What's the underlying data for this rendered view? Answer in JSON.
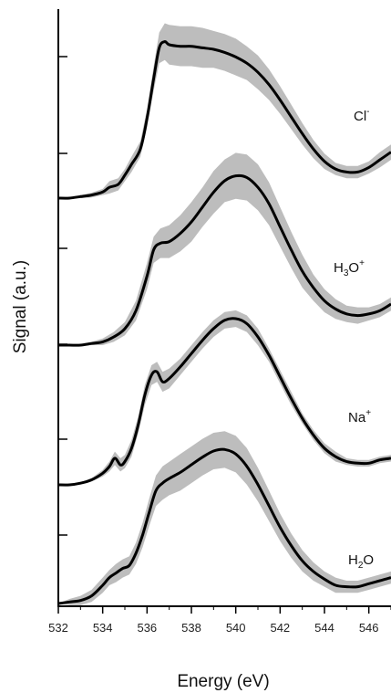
{
  "chart_data": {
    "type": "line",
    "title": "",
    "xlabel": "Energy (eV)",
    "ylabel": "Signal (a.u.)",
    "xlim": [
      532,
      547
    ],
    "x_ticks": [
      532,
      534,
      536,
      538,
      540,
      542,
      544,
      546
    ],
    "y_tick_labels_shown": false,
    "shaded_band": true,
    "line_color": "#000000",
    "band_color": "#bdbdbd",
    "series": [
      {
        "name": "Cl⁻",
        "label": {
          "base": "Cl",
          "sup": "-",
          "sub": ""
        },
        "offset": 0,
        "x": [
          532.0,
          532.5,
          533.0,
          533.5,
          534.0,
          534.3,
          534.7,
          535.0,
          535.3,
          535.7,
          536.0,
          536.3,
          536.55,
          536.8,
          537.0,
          537.5,
          538.0,
          538.5,
          539.0,
          539.5,
          540.0,
          540.5,
          541.0,
          541.5,
          542.0,
          542.5,
          543.0,
          543.5,
          544.0,
          544.5,
          545.0,
          545.5,
          546.0,
          546.5,
          547.0
        ],
        "y": [
          0.0,
          0.0,
          0.01,
          0.02,
          0.04,
          0.07,
          0.09,
          0.15,
          0.22,
          0.32,
          0.52,
          0.78,
          0.98,
          1.02,
          1.0,
          0.99,
          0.99,
          0.98,
          0.97,
          0.95,
          0.92,
          0.88,
          0.82,
          0.74,
          0.64,
          0.53,
          0.42,
          0.32,
          0.24,
          0.19,
          0.17,
          0.17,
          0.2,
          0.25,
          0.3
        ],
        "band_half_width": [
          0.0,
          0.0,
          0.01,
          0.015,
          0.02,
          0.04,
          0.04,
          0.04,
          0.05,
          0.05,
          0.06,
          0.08,
          0.1,
          0.12,
          0.13,
          0.13,
          0.13,
          0.13,
          0.12,
          0.12,
          0.12,
          0.11,
          0.11,
          0.1,
          0.09,
          0.08,
          0.07,
          0.06,
          0.05,
          0.04,
          0.04,
          0.04,
          0.04,
          0.05,
          0.05
        ]
      },
      {
        "name": "H₃O⁺",
        "label": {
          "base": "H",
          "sub": "3",
          "mid": "O",
          "sup": "+"
        },
        "offset": 0,
        "x": [
          532.0,
          532.5,
          533.0,
          533.5,
          534.0,
          534.5,
          535.0,
          535.5,
          536.0,
          536.3,
          536.6,
          537.0,
          537.5,
          538.0,
          538.5,
          539.0,
          539.5,
          540.0,
          540.5,
          541.0,
          541.5,
          542.0,
          542.5,
          543.0,
          543.5,
          544.0,
          544.5,
          545.0,
          545.5,
          546.0,
          546.5,
          547.0
        ],
        "y": [
          0.0,
          0.0,
          0.0,
          0.01,
          0.02,
          0.05,
          0.1,
          0.21,
          0.42,
          0.58,
          0.62,
          0.63,
          0.68,
          0.75,
          0.84,
          0.93,
          1.0,
          1.03,
          1.02,
          0.96,
          0.86,
          0.72,
          0.58,
          0.45,
          0.35,
          0.27,
          0.22,
          0.19,
          0.18,
          0.19,
          0.21,
          0.25
        ],
        "band_half_width": [
          0.0,
          0.0,
          0.005,
          0.01,
          0.02,
          0.03,
          0.04,
          0.06,
          0.08,
          0.08,
          0.09,
          0.1,
          0.11,
          0.12,
          0.12,
          0.13,
          0.13,
          0.14,
          0.14,
          0.14,
          0.13,
          0.12,
          0.11,
          0.1,
          0.08,
          0.07,
          0.06,
          0.05,
          0.05,
          0.04,
          0.04,
          0.04
        ]
      },
      {
        "name": "Na⁺",
        "label": {
          "base": "Na",
          "sup": "+",
          "sub": ""
        },
        "offset": 0,
        "x": [
          532.0,
          532.5,
          533.0,
          533.5,
          534.0,
          534.3,
          534.55,
          534.8,
          535.0,
          535.3,
          535.6,
          535.9,
          536.2,
          536.45,
          536.7,
          537.0,
          537.5,
          538.0,
          538.5,
          539.0,
          539.5,
          540.0,
          540.5,
          541.0,
          541.5,
          542.0,
          542.5,
          543.0,
          543.5,
          544.0,
          544.5,
          545.0,
          545.5,
          546.0,
          546.5,
          547.0
        ],
        "y": [
          0.0,
          0.0,
          0.01,
          0.03,
          0.07,
          0.11,
          0.16,
          0.12,
          0.14,
          0.22,
          0.36,
          0.54,
          0.66,
          0.68,
          0.62,
          0.64,
          0.71,
          0.79,
          0.87,
          0.94,
          0.99,
          1.0,
          0.97,
          0.89,
          0.78,
          0.65,
          0.52,
          0.4,
          0.3,
          0.22,
          0.17,
          0.14,
          0.13,
          0.13,
          0.15,
          0.16
        ],
        "band_half_width": [
          0.0,
          0.0,
          0.005,
          0.01,
          0.02,
          0.03,
          0.04,
          0.04,
          0.04,
          0.05,
          0.05,
          0.06,
          0.06,
          0.06,
          0.06,
          0.06,
          0.05,
          0.05,
          0.05,
          0.05,
          0.05,
          0.05,
          0.05,
          0.05,
          0.04,
          0.04,
          0.04,
          0.03,
          0.03,
          0.03,
          0.03,
          0.02,
          0.02,
          0.02,
          0.02,
          0.02
        ]
      },
      {
        "name": "H₂O",
        "label": {
          "base": "H",
          "sub": "2",
          "mid": "O",
          "sup": ""
        },
        "offset": 0,
        "x": [
          532.0,
          532.5,
          533.0,
          533.5,
          534.0,
          534.3,
          534.6,
          534.9,
          535.2,
          535.5,
          535.8,
          536.1,
          536.4,
          536.7,
          537.0,
          537.5,
          538.0,
          538.5,
          539.0,
          539.5,
          540.0,
          540.5,
          541.0,
          541.5,
          542.0,
          542.5,
          543.0,
          543.5,
          544.0,
          544.5,
          545.0,
          545.5,
          546.0,
          546.5,
          547.0
        ],
        "y": [
          0.0,
          0.01,
          0.02,
          0.05,
          0.12,
          0.17,
          0.2,
          0.23,
          0.25,
          0.33,
          0.45,
          0.6,
          0.74,
          0.79,
          0.82,
          0.86,
          0.91,
          0.96,
          1.0,
          1.01,
          0.98,
          0.9,
          0.78,
          0.64,
          0.5,
          0.38,
          0.28,
          0.21,
          0.16,
          0.12,
          0.11,
          0.11,
          0.13,
          0.15,
          0.17
        ],
        "band_half_width": [
          0.0,
          0.02,
          0.03,
          0.04,
          0.05,
          0.05,
          0.06,
          0.06,
          0.06,
          0.07,
          0.08,
          0.09,
          0.1,
          0.11,
          0.11,
          0.12,
          0.12,
          0.12,
          0.12,
          0.12,
          0.12,
          0.12,
          0.11,
          0.1,
          0.09,
          0.08,
          0.07,
          0.06,
          0.05,
          0.05,
          0.04,
          0.04,
          0.04,
          0.04,
          0.04
        ]
      }
    ]
  }
}
